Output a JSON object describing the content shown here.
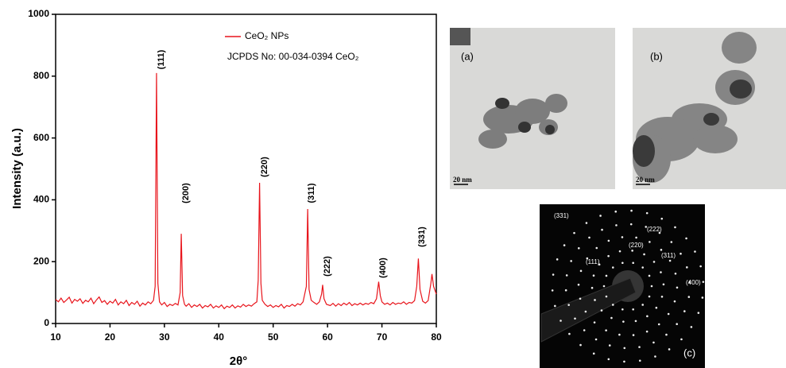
{
  "chart_data": {
    "type": "line",
    "xlabel": "2θ°",
    "ylabel": "Intensity (a.u.)",
    "xlim": [
      10,
      80
    ],
    "xticks": [
      10,
      20,
      30,
      40,
      50,
      60,
      70,
      80
    ],
    "ylim": [
      0,
      1000
    ],
    "yticks": [
      0,
      200,
      400,
      600,
      800,
      1000
    ],
    "legend": "upper center",
    "annotations": [
      "JCPDS No: 00-034-0394 CeO₂",
      "(111)",
      "(200)",
      "(220)",
      "(311)",
      "(222)",
      "(400)",
      "(331)"
    ],
    "series": [
      {
        "name": "CeO₂ NPs",
        "color": "#e8141b",
        "x": [
          10,
          10.5,
          11,
          11.5,
          12,
          12.5,
          13,
          13.5,
          14,
          14.5,
          15,
          15.5,
          16,
          16.5,
          17,
          17.5,
          18,
          18.5,
          19,
          19.5,
          20,
          20.5,
          21,
          21.5,
          22,
          22.5,
          23,
          23.5,
          24,
          24.5,
          25,
          25.5,
          26,
          26.5,
          27,
          27.5,
          28,
          28.3,
          28.55,
          28.8,
          29.1,
          29.5,
          30,
          30.5,
          31,
          31.5,
          32,
          32.5,
          32.9,
          33.1,
          33.35,
          33.7,
          34,
          34.5,
          35,
          35.5,
          36,
          36.5,
          37,
          37.5,
          38,
          38.5,
          39,
          39.5,
          40,
          40.5,
          41,
          41.5,
          42,
          42.5,
          43,
          43.5,
          44,
          44.5,
          45,
          45.5,
          46,
          46.5,
          47,
          47.25,
          47.5,
          47.75,
          48,
          48.5,
          49,
          49.5,
          50,
          50.5,
          51,
          51.5,
          52,
          52.5,
          53,
          53.5,
          54,
          54.5,
          55,
          55.5,
          56.1,
          56.35,
          56.6,
          57,
          57.5,
          58,
          58.5,
          58.9,
          59.1,
          59.35,
          59.8,
          60.5,
          61,
          61.5,
          62,
          62.5,
          63,
          63.5,
          64,
          64.5,
          65,
          65.5,
          66,
          66.5,
          67,
          67.5,
          68,
          68.5,
          69,
          69.4,
          69.7,
          70,
          70.5,
          71,
          71.5,
          72,
          72.5,
          73,
          73.5,
          74,
          74.5,
          75,
          75.5,
          76,
          76.4,
          76.7,
          77,
          77.5,
          78,
          78.5,
          79,
          79.2,
          79.5,
          80
        ],
        "values": [
          78,
          70,
          82,
          68,
          76,
          85,
          66,
          78,
          72,
          80,
          65,
          75,
          70,
          82,
          64,
          76,
          86,
          68,
          74,
          62,
          72,
          66,
          78,
          60,
          70,
          64,
          75,
          58,
          68,
          62,
          72,
          56,
          66,
          60,
          70,
          64,
          75,
          120,
          810,
          130,
          70,
          60,
          68,
          55,
          62,
          58,
          65,
          60,
          100,
          290,
          90,
          62,
          56,
          64,
          52,
          60,
          55,
          62,
          50,
          58,
          54,
          62,
          50,
          57,
          52,
          60,
          48,
          56,
          52,
          60,
          50,
          57,
          53,
          62,
          55,
          60,
          56,
          64,
          70,
          140,
          455,
          130,
          75,
          62,
          55,
          60,
          52,
          58,
          54,
          62,
          50,
          58,
          55,
          62,
          56,
          64,
          60,
          70,
          120,
          370,
          110,
          75,
          68,
          62,
          70,
          95,
          125,
          80,
          62,
          58,
          65,
          56,
          64,
          58,
          66,
          60,
          68,
          58,
          64,
          60,
          66,
          60,
          65,
          62,
          68,
          64,
          80,
          135,
          90,
          70,
          62,
          66,
          60,
          68,
          62,
          66,
          64,
          70,
          62,
          68,
          66,
          74,
          120,
          210,
          110,
          72,
          66,
          74,
          130,
          160,
          120,
          95
        ]
      }
    ]
  },
  "images": [
    {
      "label": "(a)",
      "scale": "20 nm"
    },
    {
      "label": "(b)",
      "scale": "20 nm"
    },
    {
      "label": "(c)"
    }
  ],
  "saed_labels": [
    "(331)",
    "(222)",
    "(220)",
    "(311)",
    "(111)",
    "(400)"
  ]
}
